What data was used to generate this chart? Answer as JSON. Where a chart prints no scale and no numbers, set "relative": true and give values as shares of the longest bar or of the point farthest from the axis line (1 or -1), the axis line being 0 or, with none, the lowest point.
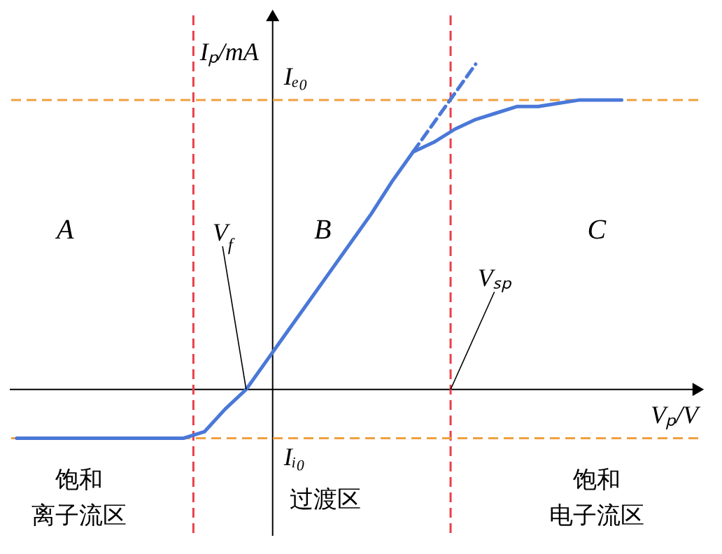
{
  "chart_data": {
    "type": "line",
    "relative": true,
    "xlabel": "Vₚ/V",
    "ylabel": "Iₚ/mA",
    "marker": "none",
    "categories": [
      null,
      null,
      null,
      null,
      null,
      null,
      null,
      null,
      null,
      null,
      null,
      null,
      null,
      null,
      null,
      null,
      null,
      null,
      null,
      null,
      null,
      null,
      null,
      null,
      null,
      null,
      null,
      null,
      null,
      null
    ],
    "series": [
      {
        "color": "#4a78d8",
        "line_style": "solid",
        "values": [
          -0.15,
          -0.15,
          -0.15,
          -0.15,
          -0.15,
          -0.15,
          -0.15,
          -0.15,
          -0.15,
          -0.13,
          -0.06,
          0,
          0.09,
          0.18,
          0.27,
          0.36,
          0.45,
          0.54,
          0.64,
          0.73,
          0.76,
          0.8,
          0.83,
          0.85,
          0.87,
          0.87,
          0.88,
          0.89,
          0.89,
          0.89
        ]
      },
      {
        "color": "#4a78d8",
        "line_style": "dashed",
        "values": [
          null,
          null,
          null,
          null,
          null,
          null,
          null,
          null,
          null,
          null,
          null,
          null,
          null,
          null,
          null,
          null,
          null,
          null,
          null,
          0.73,
          0.82,
          0.91,
          1.0,
          null,
          null,
          null,
          null,
          null,
          null,
          null
        ]
      }
    ],
    "ref_lines": [
      {
        "axis": "y",
        "value": 0.89,
        "label": "Iₑ₀",
        "color": "#f0a040",
        "line_style": "dashed"
      },
      {
        "axis": "y",
        "value": -0.15,
        "label": "Iᵢ₀",
        "color": "#f0a040",
        "line_style": "dashed"
      }
    ],
    "annotations": [
      "A",
      "B",
      "C",
      "V$_{f}$",
      "Vₛₚ",
      "饱和",
      "离子流区",
      "过渡区",
      "饱和",
      "电子流区"
    ]
  }
}
